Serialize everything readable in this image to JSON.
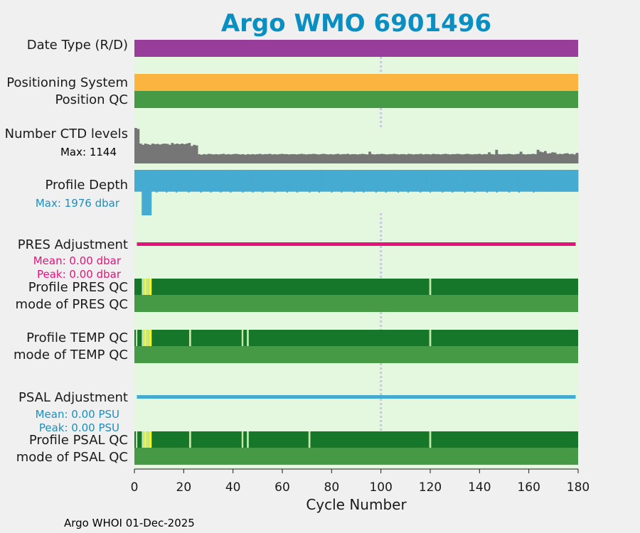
{
  "chart_data": {
    "type": "bar",
    "title": "Argo WMO 6901496",
    "xlabel": "Cycle Number",
    "xlim": [
      0,
      180
    ],
    "x_ticks": [
      "0",
      "20",
      "40",
      "60",
      "80",
      "100",
      "120",
      "140",
      "160",
      "180"
    ],
    "reference_cycle": 100,
    "footer": "Argo WHOI 01-Dec-2025",
    "rows": {
      "date_type": {
        "label": "Date Type (R/D)",
        "range": [
          0,
          180
        ],
        "color": "#983d99"
      },
      "positioning_system": {
        "label": "Positioning System",
        "range": [
          0,
          180
        ],
        "color": "#fbb440"
      },
      "position_qc": {
        "label": "Position QC",
        "range": [
          0,
          180
        ],
        "color": "#469a46"
      },
      "ctd_levels": {
        "label": "Number CTD levels",
        "max_label": "Max: 1144",
        "max": 1144,
        "color": "#767676",
        "values": [
          1144,
          1110,
          640,
          600,
          640,
          620,
          600,
          640,
          620,
          630,
          610,
          630,
          640,
          630,
          600,
          660,
          620,
          640,
          620,
          640,
          620,
          640,
          660,
          560,
          600,
          580,
          300,
          280,
          300,
          290,
          310,
          300,
          290,
          300,
          290,
          300,
          310,
          290,
          300,
          290,
          300,
          310,
          300,
          290,
          300,
          280,
          300,
          290,
          300,
          290,
          300,
          310,
          290,
          300,
          300,
          310,
          290,
          300,
          290,
          300,
          310,
          300,
          300,
          290,
          300,
          300,
          290,
          300,
          310,
          300,
          290,
          300,
          300,
          310,
          300,
          290,
          300,
          310,
          300,
          290,
          300,
          290,
          300,
          310,
          290,
          300,
          300,
          310,
          290,
          300,
          300,
          290,
          300,
          310,
          300,
          290,
          380,
          300,
          290,
          300,
          300,
          310,
          300,
          290,
          300,
          300,
          310,
          300,
          290,
          300,
          300,
          290,
          310,
          300,
          290,
          300,
          300,
          310,
          290,
          300,
          300,
          290,
          310,
          300,
          300,
          290,
          300,
          310,
          300,
          290,
          300,
          300,
          310,
          300,
          290,
          300,
          310,
          300,
          290,
          300,
          300,
          310,
          290,
          300,
          300,
          360,
          300,
          290,
          440,
          300,
          290,
          300,
          300,
          310,
          300,
          290,
          300,
          310,
          380,
          300,
          290,
          300,
          300,
          310,
          300,
          440,
          380,
          360,
          400,
          320,
          330,
          360,
          350,
          300,
          310,
          300,
          320,
          330,
          300,
          310,
          290,
          340
        ]
      },
      "profile_depth": {
        "label": "Profile Depth",
        "max_label": "Max: 1976 dbar",
        "max": 1976,
        "color": "#46abd0",
        "values": [
          1000,
          1000,
          1000,
          1976,
          1976,
          1976,
          1976,
          1000,
          1000,
          1000,
          1000,
          1000,
          1000,
          1000,
          1000,
          1000,
          1000,
          1000,
          1000,
          1000,
          1000,
          1000,
          1000,
          1000,
          1000,
          1000,
          1000,
          1000,
          1000,
          1000,
          1000,
          1000,
          1000,
          1000,
          1000,
          1000,
          1000,
          1000,
          1000,
          1000,
          1000,
          1000,
          1000,
          1000,
          1000,
          1000,
          1000,
          1000,
          1000,
          1000,
          1000,
          1000,
          1000,
          1000,
          1000,
          1000,
          1000,
          1000,
          1000,
          1000,
          1000,
          1000,
          1000,
          1000,
          1000,
          1000,
          1000,
          1000,
          1000,
          1000,
          1000,
          1000,
          1000,
          1000,
          1000,
          1000,
          1000,
          1000,
          1000,
          1000,
          1000,
          1000,
          1000,
          1000,
          1000,
          1000,
          1000,
          1000,
          1000,
          1000,
          1000,
          1000,
          1000,
          1000,
          1000,
          1000,
          1000,
          1000,
          1000,
          1000,
          1000,
          1000,
          1000,
          1000,
          1000,
          1000,
          1000,
          1000,
          1000,
          1000,
          1000,
          1000,
          1000,
          1000,
          1000,
          1000,
          1000,
          1000,
          1000,
          1000,
          1000,
          1000,
          1000,
          1000,
          1000,
          1000,
          1000,
          1000,
          1000,
          1000,
          1000,
          1000,
          1000,
          1000,
          1000,
          1000,
          1000,
          1000,
          1000,
          1000,
          1000,
          1000,
          1000,
          1000,
          1000,
          1000,
          1000,
          1000,
          1000,
          1000,
          1000,
          1000,
          1000,
          1000,
          1000,
          1000,
          1000,
          1000,
          1000,
          1000,
          1000,
          1000,
          1000,
          1000,
          1000,
          1000,
          1000,
          1000,
          1000,
          1000,
          1000,
          1000,
          1000,
          1000,
          1000,
          1000,
          1000,
          1000,
          1000,
          1000,
          1000,
          1000,
          1000
        ],
        "deep_cycles": [
          9,
          13,
          17,
          22,
          27,
          31,
          35,
          39,
          44,
          48,
          52,
          57,
          62,
          66,
          71,
          75,
          80,
          84,
          89,
          93,
          98,
          102,
          107,
          111,
          116,
          120,
          125,
          129,
          134,
          138,
          143,
          147,
          152,
          156,
          162
        ]
      },
      "pres_adjustment": {
        "label": "PRES Adjustment",
        "mean_label": "Mean: 0.00 dbar",
        "peak_label": "Peak: 0.00 dbar",
        "mean": 0.0,
        "peak": 0.0,
        "color": "#e8107a",
        "range": [
          1,
          179
        ]
      },
      "profile_pres_qc": {
        "label": "Profile PRES QC",
        "base_color": "#16762a",
        "segments": [
          {
            "from": 3,
            "to": 4,
            "color": "#c4e8a8"
          },
          {
            "from": 4,
            "to": 5,
            "color": "#f6f62c"
          },
          {
            "from": 5,
            "to": 6,
            "color": "#c4e8a8"
          },
          {
            "from": 6,
            "to": 7,
            "color": "#f6f62c"
          },
          {
            "from": 119.6,
            "to": 120.4,
            "color": "#c4e8a8"
          }
        ]
      },
      "mode_pres_qc": {
        "label": "mode of PRES QC",
        "range": [
          0,
          180
        ],
        "color": "#469a46"
      },
      "profile_temp_qc": {
        "label": "Profile TEMP QC",
        "base_color": "#16762a",
        "segments": [
          {
            "from": 0.6,
            "to": 1.2,
            "color": "#c4e8a8"
          },
          {
            "from": 3,
            "to": 4,
            "color": "#c4e8a8"
          },
          {
            "from": 4,
            "to": 5,
            "color": "#f6f62c"
          },
          {
            "from": 5,
            "to": 6,
            "color": "#c4e8a8"
          },
          {
            "from": 6,
            "to": 7,
            "color": "#f6f62c"
          },
          {
            "from": 22.2,
            "to": 23,
            "color": "#c4e8a8"
          },
          {
            "from": 43.5,
            "to": 44.2,
            "color": "#c4e8a8"
          },
          {
            "from": 45.6,
            "to": 46.4,
            "color": "#c4e8a8"
          },
          {
            "from": 119.6,
            "to": 120.4,
            "color": "#c4e8a8"
          }
        ]
      },
      "mode_temp_qc": {
        "label": "mode of TEMP QC",
        "range": [
          0,
          180
        ],
        "color": "#469a46"
      },
      "psal_adjustment": {
        "label": "PSAL Adjustment",
        "mean_label": "Mean: 0.00 PSU",
        "peak_label": "Peak: 0.00 PSU",
        "mean": 0.0,
        "peak": 0.0,
        "color": "#44aad0",
        "range": [
          1,
          179
        ]
      },
      "profile_psal_qc": {
        "label": "Profile PSAL QC",
        "base_color": "#16762a",
        "segments": [
          {
            "from": 0.6,
            "to": 1.2,
            "color": "#c4e8a8"
          },
          {
            "from": 3,
            "to": 4,
            "color": "#c4e8a8"
          },
          {
            "from": 4,
            "to": 5,
            "color": "#f6f62c"
          },
          {
            "from": 5,
            "to": 6,
            "color": "#c4e8a8"
          },
          {
            "from": 6,
            "to": 7,
            "color": "#f6f62c"
          },
          {
            "from": 22.2,
            "to": 23,
            "color": "#c4e8a8"
          },
          {
            "from": 43.5,
            "to": 44.2,
            "color": "#c4e8a8"
          },
          {
            "from": 45.6,
            "to": 46.4,
            "color": "#c4e8a8"
          },
          {
            "from": 70.6,
            "to": 71.4,
            "color": "#c4e8a8"
          },
          {
            "from": 119.6,
            "to": 120.4,
            "color": "#c4e8a8"
          }
        ]
      },
      "mode_psal_qc": {
        "label": "mode of PSAL QC",
        "range": [
          0,
          180
        ],
        "color": "#469a46"
      }
    }
  },
  "colors": {
    "title": "#0a8fc2",
    "plot_background": "#e4f8e0",
    "page_background": "#f0f0f0",
    "pres_text": "#e8107a",
    "psal_text": "#1a8fbf",
    "depth_text": "#1a8fbf",
    "reference_line": "#c8c8d8"
  }
}
